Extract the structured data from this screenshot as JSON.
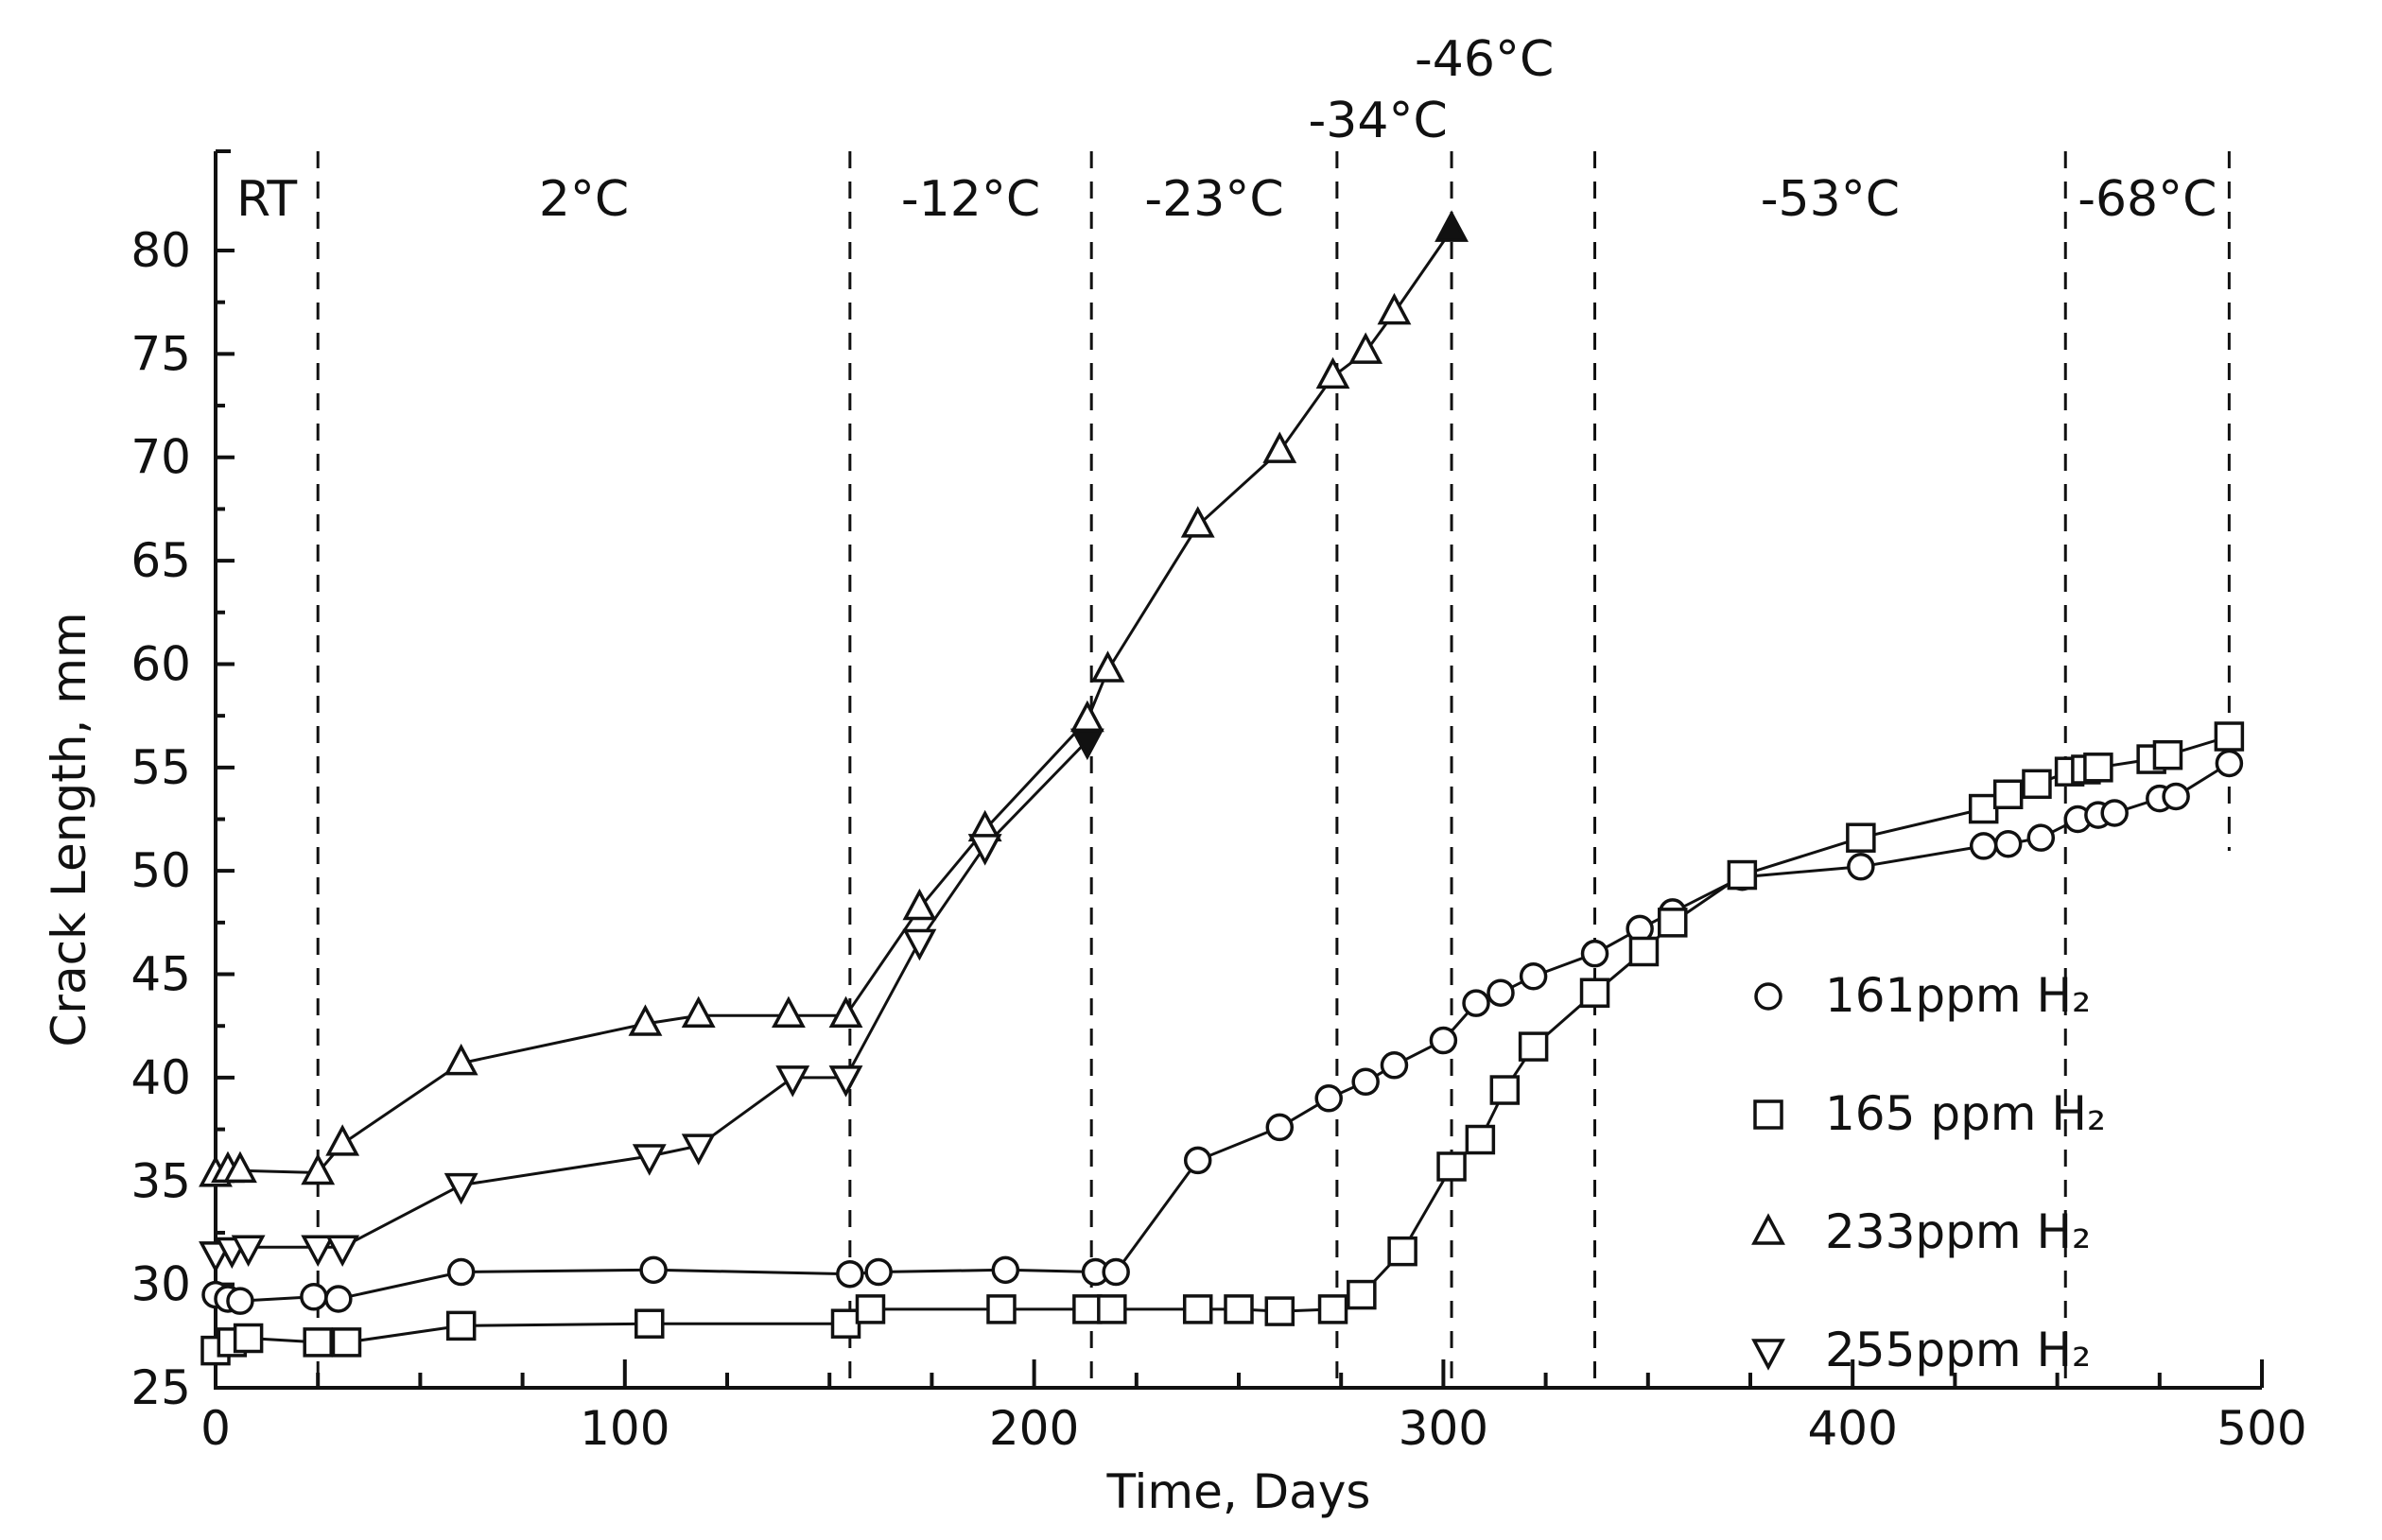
{
  "chart_data": {
    "type": "line",
    "title": "",
    "xlabel": "Time, Days",
    "ylabel": "Crack Length, mm",
    "xlim": [
      0,
      500
    ],
    "ylim": [
      25,
      82
    ],
    "x_ticks": [
      0,
      100,
      200,
      300,
      400,
      500
    ],
    "y_ticks": [
      25,
      30,
      35,
      40,
      45,
      50,
      55,
      60,
      65,
      70,
      75,
      80
    ],
    "grid": false,
    "legend_position": "bottom-right",
    "temperature_regions": [
      {
        "label": "RT",
        "start": 0,
        "end": 25
      },
      {
        "label": "2°C",
        "start": 25,
        "end": 155
      },
      {
        "label": "-12°C",
        "start": 155,
        "end": 214
      },
      {
        "label": "-23°C",
        "start": 214,
        "end": 274
      },
      {
        "label": "-34°C",
        "start": 274,
        "end": 302
      },
      {
        "label": "-46°C",
        "start": 302,
        "end": 337
      },
      {
        "label": "-53°C",
        "start": 337,
        "end": 452
      },
      {
        "label": "-68°C",
        "start": 452,
        "end": 492
      }
    ],
    "series": [
      {
        "name": "161ppm H₂",
        "marker": "circle",
        "x": [
          0,
          3,
          6,
          24,
          30,
          60,
          107,
          155,
          162,
          193,
          215,
          220,
          240,
          260,
          272,
          281,
          288,
          300,
          308,
          314,
          322,
          337,
          348,
          356,
          373,
          402,
          432,
          438,
          446,
          455,
          460,
          464,
          475,
          479,
          492
        ],
        "y": [
          29.5,
          29.3,
          29.2,
          29.4,
          29.3,
          30.6,
          30.7,
          30.5,
          30.6,
          30.7,
          30.6,
          30.6,
          36,
          37.6,
          39,
          39.8,
          40.6,
          41.8,
          43.6,
          44.1,
          44.9,
          46,
          47.2,
          48,
          49.7,
          50.2,
          51.2,
          51.3,
          51.6,
          52.5,
          52.7,
          52.8,
          53.5,
          53.6,
          55.2
        ]
      },
      {
        "name": "165 ppm H₂",
        "marker": "square",
        "x": [
          0,
          4,
          8,
          25,
          32,
          60,
          106,
          154,
          160,
          192,
          213,
          219,
          240,
          250,
          260,
          273,
          280,
          290,
          302,
          309,
          315,
          322,
          337,
          349,
          356,
          373,
          402,
          432,
          438,
          445,
          453,
          457,
          460,
          473,
          477,
          492
        ],
        "y": [
          26.8,
          27.2,
          27.4,
          27.2,
          27.2,
          28,
          28.1,
          28.1,
          28.8,
          28.8,
          28.8,
          28.8,
          28.8,
          28.8,
          28.7,
          28.8,
          29.5,
          31.6,
          35.7,
          37,
          39.4,
          41.5,
          44.1,
          46.1,
          47.5,
          49.8,
          51.6,
          53,
          53.7,
          54.2,
          54.8,
          54.9,
          55,
          55.4,
          55.6,
          56.5
        ]
      },
      {
        "name": "233ppm H₂",
        "marker": "triangle-up",
        "x": [
          0,
          3,
          6,
          25,
          31,
          60,
          105,
          118,
          140,
          154,
          172,
          188,
          213,
          218,
          240,
          260,
          273,
          281,
          288,
          302
        ],
        "y": [
          35.3,
          35.5,
          35.5,
          35.4,
          36.8,
          40.7,
          42.6,
          43,
          43,
          43,
          48.2,
          52,
          57.3,
          59.7,
          66.7,
          70.3,
          73.9,
          75.1,
          77,
          81
        ]
      },
      {
        "name": "255ppm H₂",
        "marker": "triangle-down",
        "x": [
          0,
          4,
          8,
          25,
          31,
          60,
          106,
          118,
          141,
          154,
          172,
          188,
          213
        ],
        "y": [
          31.5,
          31.7,
          31.8,
          31.8,
          31.8,
          34.8,
          36.2,
          36.7,
          40,
          40,
          46.6,
          51.2,
          56.3
        ]
      }
    ]
  }
}
